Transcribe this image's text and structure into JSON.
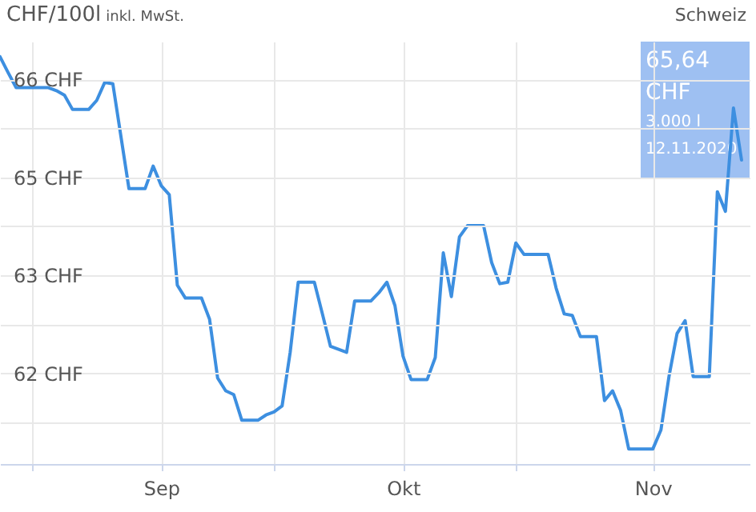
{
  "chart_data": {
    "type": "line",
    "title": "CHF/100l",
    "subtitle": "inkl. MwSt.",
    "annotations": [
      "Schweiz",
      "65,64",
      "CHF",
      "3.000 l",
      "12.11.2020"
    ],
    "x": [
      "2020-08-12",
      "2020-08-13",
      "2020-08-14",
      "2020-08-16",
      "2020-08-18",
      "2020-08-19",
      "2020-08-20",
      "2020-08-21",
      "2020-08-23",
      "2020-08-24",
      "2020-08-25",
      "2020-08-26",
      "2020-08-28",
      "2020-08-30",
      "2020-08-31",
      "2020-09-01",
      "2020-09-02",
      "2020-09-03",
      "2020-09-04",
      "2020-09-06",
      "2020-09-07",
      "2020-09-08",
      "2020-09-09",
      "2020-09-10",
      "2020-09-11",
      "2020-09-13",
      "2020-09-14",
      "2020-09-15",
      "2020-09-16",
      "2020-09-17",
      "2020-09-18",
      "2020-09-20",
      "2020-09-21",
      "2020-09-22",
      "2020-09-24",
      "2020-09-25",
      "2020-09-27",
      "2020-09-28",
      "2020-09-29",
      "2020-09-30",
      "2020-10-01",
      "2020-10-02",
      "2020-10-04",
      "2020-10-05",
      "2020-10-06",
      "2020-10-07",
      "2020-10-08",
      "2020-10-09",
      "2020-10-11",
      "2020-10-12",
      "2020-10-13",
      "2020-10-14",
      "2020-10-15",
      "2020-10-16",
      "2020-10-19",
      "2020-10-20",
      "2020-10-21",
      "2020-10-22",
      "2020-10-23",
      "2020-10-25",
      "2020-10-26",
      "2020-10-27",
      "2020-10-28",
      "2020-10-29",
      "2020-11-01",
      "2020-11-02",
      "2020-11-03",
      "2020-11-04",
      "2020-11-05",
      "2020-11-06",
      "2020-11-08",
      "2020-11-09",
      "2020-11-10",
      "2020-11-11",
      "2020-11-12"
    ],
    "series": [
      {
        "color": "#3d8fe0",
        "values": [
          66.4,
          66.19,
          65.99,
          65.99,
          65.99,
          65.95,
          65.89,
          65.7,
          65.7,
          65.82,
          66.06,
          66.04,
          64.65,
          64.65,
          64.95,
          64.69,
          64.57,
          63.37,
          63.2,
          63.2,
          62.92,
          62.14,
          61.97,
          61.92,
          61.58,
          61.58,
          61.65,
          61.69,
          61.77,
          62.48,
          63.41,
          63.41,
          62.99,
          62.56,
          62.48,
          63.16,
          63.16,
          63.27,
          63.41,
          63.1,
          62.43,
          62.12,
          62.12,
          62.41,
          63.8,
          63.22,
          64.01,
          64.16,
          64.16,
          63.67,
          63.39,
          63.41,
          63.93,
          63.78,
          63.78,
          63.33,
          62.99,
          62.97,
          62.69,
          62.69,
          61.84,
          61.97,
          61.71,
          61.2,
          61.2,
          61.45,
          62.16,
          62.73,
          62.9,
          62.16,
          62.16,
          64.61,
          64.35,
          65.72,
          65.03
        ]
      }
    ],
    "xlim": [
      "2020-08-12",
      "2020-11-13"
    ],
    "xticks": [
      {
        "value": "2020-08-16",
        "label": null
      },
      {
        "value": "2020-09-01",
        "label": "Sep"
      },
      {
        "value": "2020-09-15",
        "label": null
      },
      {
        "value": "2020-10-01",
        "label": "Okt"
      },
      {
        "value": "2020-10-15",
        "label": null
      },
      {
        "value": "2020-11-01",
        "label": "Nov"
      }
    ],
    "ylim": [
      61.0,
      66.6
    ],
    "yticks": [
      {
        "value": 61.55,
        "label": null
      },
      {
        "value": 62.2,
        "label": "62 CHF"
      },
      {
        "value": 62.85,
        "label": null
      },
      {
        "value": 63.5,
        "label": "63 CHF"
      },
      {
        "value": 64.15,
        "label": null
      },
      {
        "value": 64.8,
        "label": "65 CHF"
      },
      {
        "value": 65.45,
        "label": null
      },
      {
        "value": 66.1,
        "label": "66 CHF"
      }
    ],
    "grid": true,
    "line_style": "solid",
    "marker": "none"
  }
}
